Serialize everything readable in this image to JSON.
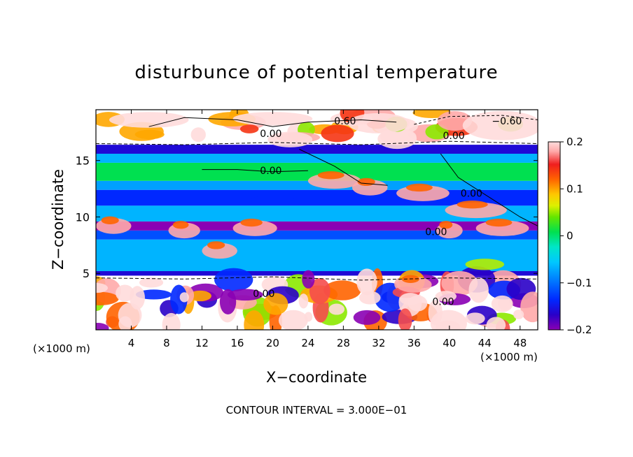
{
  "chart_data": {
    "type": "heatmap",
    "title": "disturbunce of potential temperature",
    "xlabel": "X−coordinate",
    "ylabel": "Z−coordinate",
    "x_unit": "(×1000 m)",
    "y_unit": "(×1000 m)",
    "xlim": [
      0,
      50
    ],
    "ylim": [
      0,
      19.5
    ],
    "x_ticks": [
      4,
      8,
      12,
      16,
      20,
      24,
      28,
      32,
      36,
      40,
      44,
      48
    ],
    "y_ticks": [
      5,
      10,
      15
    ],
    "colorbar": {
      "range": [
        -0.2,
        0.2
      ],
      "ticks": [
        "0.2",
        "0.1",
        "0",
        "−0.1",
        "−0.2"
      ],
      "colors": [
        "#8a00b4",
        "#1e00d2",
        "#0050ff",
        "#00aaff",
        "#00e1e1",
        "#00e6a0",
        "#00dc3c",
        "#78e600",
        "#f0f000",
        "#ffb400",
        "#ff6400",
        "#f01414",
        "#ffb4b4",
        "#ffffff"
      ]
    },
    "bands": [
      {
        "z": [
          0.0,
          4.8
        ],
        "value": "mixed"
      },
      {
        "z": [
          4.8,
          5.2
        ],
        "value": -0.15
      },
      {
        "z": [
          5.2,
          8.0
        ],
        "value": -0.05
      },
      {
        "z": [
          8.0,
          8.8
        ],
        "value": -0.1
      },
      {
        "z": [
          8.8,
          9.6
        ],
        "value": -0.2
      },
      {
        "z": [
          9.6,
          11.0
        ],
        "value": -0.05
      },
      {
        "z": [
          11.0,
          12.4
        ],
        "value": -0.12
      },
      {
        "z": [
          12.4,
          13.2
        ],
        "value": -0.06
      },
      {
        "z": [
          13.2,
          14.8
        ],
        "value": 0.0
      },
      {
        "z": [
          14.8,
          15.6
        ],
        "value": -0.05
      },
      {
        "z": [
          15.6,
          16.4
        ],
        "value": -0.15
      },
      {
        "z": [
          16.4,
          19.5
        ],
        "value": "mixed"
      }
    ],
    "contour_labels": [
      {
        "text": "0.60",
        "x": 28.2,
        "z": 18.2
      },
      {
        "text": "−0.60",
        "x": 46.5,
        "z": 18.2
      },
      {
        "text": "0.00",
        "x": 19.8,
        "z": 17.1
      },
      {
        "text": "0.00",
        "x": 40.5,
        "z": 16.9
      },
      {
        "text": "0.00",
        "x": 19.8,
        "z": 13.8
      },
      {
        "text": "0.00",
        "x": 42.5,
        "z": 11.8
      },
      {
        "text": "0.00",
        "x": 38.5,
        "z": 8.4
      },
      {
        "text": "0.00",
        "x": 19.0,
        "z": 2.9
      },
      {
        "text": "0.00",
        "x": 39.3,
        "z": 2.2
      }
    ],
    "contour_interval_text": "CONTOUR INTERVAL = 3.000E−01"
  }
}
